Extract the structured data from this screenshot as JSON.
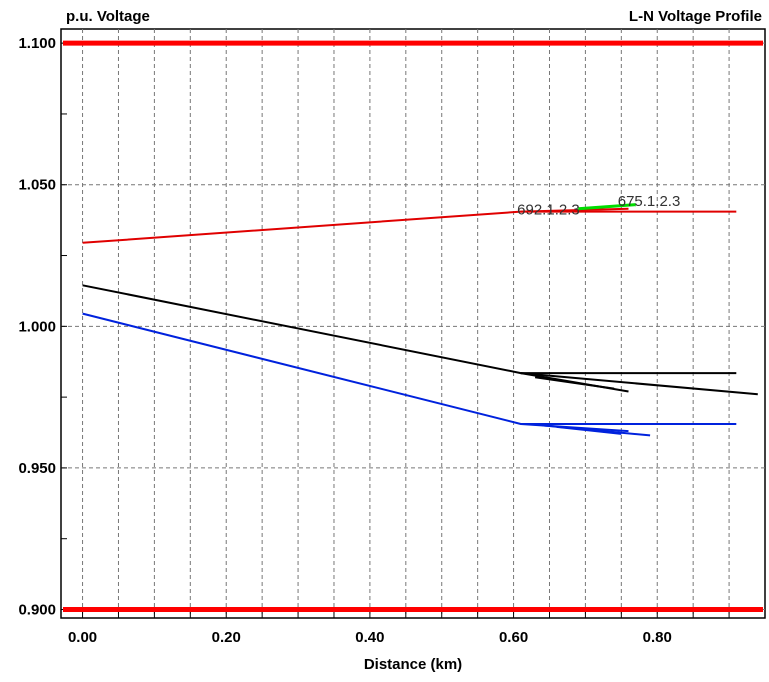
{
  "chart_data": {
    "type": "line",
    "title": "L-N Voltage Profile",
    "ylabel": "p.u. Voltage",
    "xlabel": "Distance (km)",
    "xlim": [
      -0.03,
      0.95
    ],
    "ylim": [
      0.897,
      1.105
    ],
    "grid": true,
    "y_ticks": [
      {
        "value": 0.9,
        "label": "0.900"
      },
      {
        "value": 0.95,
        "label": "0.950"
      },
      {
        "value": 1.0,
        "label": "1.000"
      },
      {
        "value": 1.05,
        "label": "1.050"
      },
      {
        "value": 1.1,
        "label": "1.100"
      }
    ],
    "x_ticks": [
      {
        "value": 0.0,
        "label": "0.00"
      },
      {
        "value": 0.2,
        "label": "0.20"
      },
      {
        "value": 0.4,
        "label": "0.40"
      },
      {
        "value": 0.6,
        "label": "0.60"
      },
      {
        "value": 0.8,
        "label": "0.80"
      }
    ],
    "x_minor_ticks": [
      0.0,
      0.05,
      0.1,
      0.15,
      0.2,
      0.25,
      0.3,
      0.35,
      0.4,
      0.45,
      0.5,
      0.55,
      0.6,
      0.65,
      0.7,
      0.75,
      0.8,
      0.85,
      0.9
    ],
    "y_minor_ticks": [
      0.9,
      0.925,
      0.95,
      0.975,
      1.0,
      1.025,
      1.05,
      1.075,
      1.1
    ],
    "limit_lines": [
      {
        "value": 1.1,
        "color": "#ff0000"
      },
      {
        "value": 0.9,
        "color": "#ff0000"
      }
    ],
    "series": [
      {
        "color": "#e00000",
        "width": 2,
        "points": [
          [
            0.0,
            1.0295
          ],
          [
            0.61,
            1.0405
          ],
          [
            0.91,
            1.0405
          ]
        ]
      },
      {
        "color": "#e00000",
        "width": 2,
        "points": [
          [
            0.61,
            1.0405
          ],
          [
            0.76,
            1.0415
          ]
        ]
      },
      {
        "color": "#00dd00",
        "width": 3,
        "points": [
          [
            0.69,
            1.0415
          ],
          [
            0.77,
            1.043
          ]
        ]
      },
      {
        "color": "#000000",
        "width": 2,
        "points": [
          [
            0.0,
            1.0145
          ],
          [
            0.61,
            0.9835
          ],
          [
            0.91,
            0.9835
          ]
        ]
      },
      {
        "color": "#000000",
        "width": 2,
        "points": [
          [
            0.61,
            0.9835
          ],
          [
            0.94,
            0.976
          ]
        ]
      },
      {
        "color": "#000000",
        "width": 2,
        "points": [
          [
            0.61,
            0.9835
          ],
          [
            0.76,
            0.977
          ]
        ]
      },
      {
        "color": "#000000",
        "width": 2,
        "points": [
          [
            0.63,
            0.982
          ],
          [
            0.74,
            0.978
          ]
        ]
      },
      {
        "color": "#0022dd",
        "width": 2,
        "points": [
          [
            0.0,
            1.0045
          ],
          [
            0.61,
            0.9655
          ],
          [
            0.91,
            0.9655
          ]
        ]
      },
      {
        "color": "#0022dd",
        "width": 2,
        "points": [
          [
            0.61,
            0.9655
          ],
          [
            0.76,
            0.963
          ]
        ]
      },
      {
        "color": "#0022dd",
        "width": 2,
        "points": [
          [
            0.64,
            0.965
          ],
          [
            0.79,
            0.9615
          ]
        ]
      },
      {
        "color": "#0022dd",
        "width": 2,
        "points": [
          [
            0.66,
            0.9645
          ],
          [
            0.75,
            0.962
          ]
        ]
      }
    ],
    "annotations": [
      {
        "text": "692.1.2.3",
        "x": 0.605,
        "y": 1.0395
      },
      {
        "text": "675.1.2.3",
        "x": 0.745,
        "y": 1.0425
      }
    ]
  }
}
